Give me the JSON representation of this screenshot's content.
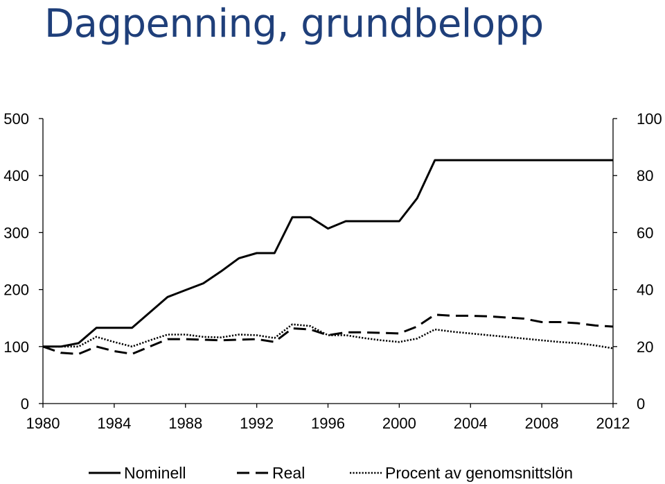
{
  "title": "Dagpenning, grundbelopp",
  "chart_data": {
    "type": "line",
    "title": "Dagpenning, grundbelopp",
    "x": [
      1980,
      1981,
      1982,
      1983,
      1984,
      1985,
      1986,
      1987,
      1988,
      1989,
      1990,
      1991,
      1992,
      1993,
      1994,
      1995,
      1996,
      1997,
      1998,
      1999,
      2000,
      2001,
      2002,
      2003,
      2004,
      2005,
      2006,
      2007,
      2008,
      2009,
      2010,
      2011,
      2012
    ],
    "xticks": [
      1980,
      1984,
      1988,
      1992,
      1996,
      2000,
      2004,
      2008,
      2012
    ],
    "xlim": [
      1980,
      2012
    ],
    "ylim_left": [
      0,
      500
    ],
    "yticks_left": [
      0,
      100,
      200,
      300,
      400,
      500
    ],
    "ylim_right": [
      0,
      100
    ],
    "yticks_right": [
      0,
      20,
      40,
      60,
      80,
      100
    ],
    "series": [
      {
        "name": "Nominell",
        "axis": "left",
        "style": "solid",
        "values": [
          100,
          100,
          106,
          133,
          133,
          133,
          160,
          187,
          199,
          211,
          232,
          255,
          264,
          264,
          327,
          327,
          307,
          320,
          320,
          320,
          320,
          360,
          427,
          427,
          427,
          427,
          427,
          427,
          427,
          427,
          427,
          427,
          427
        ]
      },
      {
        "name": "Real",
        "axis": "left",
        "style": "dashed",
        "values": [
          100,
          89,
          87,
          100,
          92,
          87,
          100,
          113,
          113,
          112,
          111,
          112,
          113,
          108,
          132,
          130,
          120,
          125,
          125,
          124,
          123,
          135,
          156,
          154,
          154,
          153,
          151,
          149,
          143,
          143,
          141,
          137,
          135
        ]
      },
      {
        "name": "Procent av genomsnittslön",
        "axis": "right",
        "style": "dotted",
        "values": [
          20,
          20,
          20,
          23.4,
          21.6,
          20,
          22.2,
          24.2,
          24.2,
          23.4,
          23.2,
          24.2,
          24,
          23,
          27.8,
          27.2,
          24,
          24,
          23,
          22.2,
          21.6,
          22.8,
          26,
          25.2,
          24.6,
          24,
          23.4,
          22.8,
          22.2,
          21.6,
          21.2,
          20.4,
          19.4
        ]
      }
    ]
  }
}
